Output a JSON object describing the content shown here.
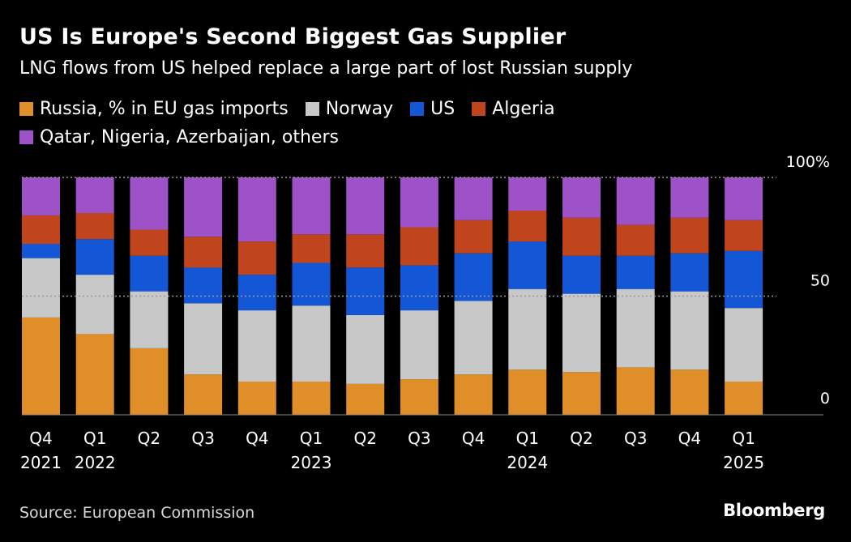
{
  "title": "US Is Europe's Second Biggest Gas Supplier",
  "subtitle": "LNG flows from US helped replace a large part of lost Russian supply",
  "source": "Source: European Commission",
  "brand": "Bloomberg",
  "colors": {
    "background": "#000000",
    "Russia": "#e08e27",
    "Norway": "#c8c8c8",
    "US": "#1357d6",
    "Algeria": "#c0441c",
    "Others": "#9e52c8",
    "grid": "#8a8a8a",
    "text": "#ffffff"
  },
  "legend": [
    {
      "label": "Russia, % in EU gas imports",
      "color": "#e08e27"
    },
    {
      "label": "Norway",
      "color": "#c8c8c8"
    },
    {
      "label": "US",
      "color": "#1357d6"
    },
    {
      "label": "Algeria",
      "color": "#c0441c"
    },
    {
      "label": "Qatar, Nigeria, Azerbaijan, others",
      "color": "#9e52c8"
    }
  ],
  "chart_data": {
    "type": "bar",
    "stacked": true,
    "title": "US Is Europe's Second Biggest Gas Supplier",
    "subtitle": "LNG flows from US helped replace a large part of lost Russian supply",
    "categories": [
      "Q4 2021",
      "Q1 2022",
      "Q2",
      "Q3",
      "Q4",
      "Q1 2023",
      "Q2",
      "Q3",
      "Q4",
      "Q1 2024",
      "Q2",
      "Q3",
      "Q4",
      "Q1 2025"
    ],
    "x_tick_lines": [
      [
        "Q4",
        "2021"
      ],
      [
        "Q1",
        "2022"
      ],
      [
        "Q2",
        ""
      ],
      [
        "Q3",
        ""
      ],
      [
        "Q4",
        ""
      ],
      [
        "Q1",
        "2023"
      ],
      [
        "Q2",
        ""
      ],
      [
        "Q3",
        ""
      ],
      [
        "Q4",
        ""
      ],
      [
        "Q1",
        "2024"
      ],
      [
        "Q2",
        ""
      ],
      [
        "Q3",
        ""
      ],
      [
        "Q4",
        ""
      ],
      [
        "Q1",
        "2025"
      ]
    ],
    "ylim": [
      0,
      100
    ],
    "yticks": [
      {
        "value": 0,
        "label": "0"
      },
      {
        "value": 50,
        "label": "50"
      },
      {
        "value": 100,
        "label": "100%"
      }
    ],
    "series": [
      {
        "name": "Russia, % in EU gas imports",
        "key": "Russia",
        "values": [
          41,
          34,
          28,
          17,
          14,
          14,
          13,
          15,
          17,
          19,
          18,
          20,
          19,
          14
        ]
      },
      {
        "name": "Norway",
        "key": "Norway",
        "values": [
          25,
          25,
          24,
          30,
          30,
          32,
          29,
          29,
          31,
          34,
          33,
          33,
          33,
          31
        ]
      },
      {
        "name": "US",
        "key": "US",
        "values": [
          6,
          15,
          15,
          15,
          15,
          18,
          20,
          19,
          20,
          20,
          16,
          14,
          16,
          24
        ]
      },
      {
        "name": "Algeria",
        "key": "Algeria",
        "values": [
          12,
          11,
          11,
          13,
          14,
          12,
          14,
          16,
          14,
          13,
          16,
          13,
          15,
          13
        ]
      },
      {
        "name": "Qatar, Nigeria, Azerbaijan, others",
        "key": "Others",
        "values": [
          16,
          15,
          22,
          25,
          27,
          24,
          24,
          21,
          18,
          14,
          17,
          20,
          17,
          18
        ]
      }
    ]
  }
}
